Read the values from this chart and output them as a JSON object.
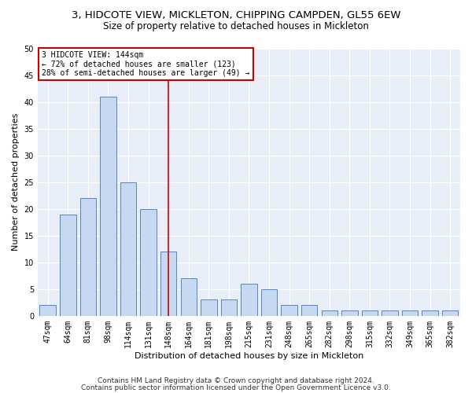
{
  "title1": "3, HIDCOTE VIEW, MICKLETON, CHIPPING CAMPDEN, GL55 6EW",
  "title2": "Size of property relative to detached houses in Mickleton",
  "xlabel": "Distribution of detached houses by size in Mickleton",
  "ylabel": "Number of detached properties",
  "categories": [
    "47sqm",
    "64sqm",
    "81sqm",
    "98sqm",
    "114sqm",
    "131sqm",
    "148sqm",
    "164sqm",
    "181sqm",
    "198sqm",
    "215sqm",
    "231sqm",
    "248sqm",
    "265sqm",
    "282sqm",
    "298sqm",
    "315sqm",
    "332sqm",
    "349sqm",
    "365sqm",
    "382sqm"
  ],
  "values": [
    2,
    19,
    22,
    41,
    25,
    20,
    12,
    7,
    3,
    3,
    6,
    5,
    2,
    2,
    1,
    1,
    1,
    1,
    1,
    1,
    1
  ],
  "bar_color": "#c6d9f0",
  "bar_edge_color": "#4472c4",
  "highlight_index": 6,
  "highlight_color": "#cc0000",
  "annotation_title": "3 HIDCOTE VIEW: 144sqm",
  "annotation_line1": "← 72% of detached houses are smaller (123)",
  "annotation_line2": "28% of semi-detached houses are larger (49) →",
  "annotation_box_color": "#cc0000",
  "ylim": [
    0,
    50
  ],
  "yticks": [
    0,
    5,
    10,
    15,
    20,
    25,
    30,
    35,
    40,
    45,
    50
  ],
  "footer1": "Contains HM Land Registry data © Crown copyright and database right 2024.",
  "footer2": "Contains public sector information licensed under the Open Government Licence v3.0.",
  "bg_color": "#e8eef7",
  "fig_bg_color": "#ffffff",
  "title1_fontsize": 9.5,
  "title2_fontsize": 8.5,
  "annotation_fontsize": 7,
  "xlabel_fontsize": 8,
  "ylabel_fontsize": 8,
  "tick_fontsize": 7,
  "footer_fontsize": 6.5
}
